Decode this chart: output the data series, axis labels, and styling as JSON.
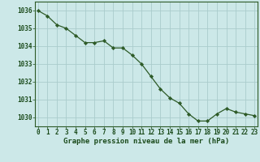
{
  "x": [
    0,
    1,
    2,
    3,
    4,
    5,
    6,
    7,
    8,
    9,
    10,
    11,
    12,
    13,
    14,
    15,
    16,
    17,
    18,
    19,
    20,
    21,
    22,
    23
  ],
  "y": [
    1036.0,
    1035.7,
    1035.2,
    1035.0,
    1034.6,
    1034.2,
    1034.2,
    1034.3,
    1033.9,
    1033.9,
    1033.5,
    1033.0,
    1032.3,
    1031.6,
    1031.1,
    1030.8,
    1030.2,
    1029.8,
    1029.8,
    1030.2,
    1030.5,
    1030.3,
    1030.2,
    1030.1
  ],
  "xlim": [
    -0.3,
    23.3
  ],
  "ylim": [
    1029.5,
    1036.5
  ],
  "yticks": [
    1030,
    1031,
    1032,
    1033,
    1034,
    1035,
    1036
  ],
  "xticks": [
    0,
    1,
    2,
    3,
    4,
    5,
    6,
    7,
    8,
    9,
    10,
    11,
    12,
    13,
    14,
    15,
    16,
    17,
    18,
    19,
    20,
    21,
    22,
    23
  ],
  "xlabel": "Graphe pression niveau de la mer (hPa)",
  "line_color": "#2d5a27",
  "marker_color": "#2d5a27",
  "bg_color": "#cce8e8",
  "grid_color": "#aacccc",
  "axis_color": "#2d5a27",
  "text_color": "#1a4a1a",
  "font_size_label": 6.5,
  "font_size_tick": 5.5
}
